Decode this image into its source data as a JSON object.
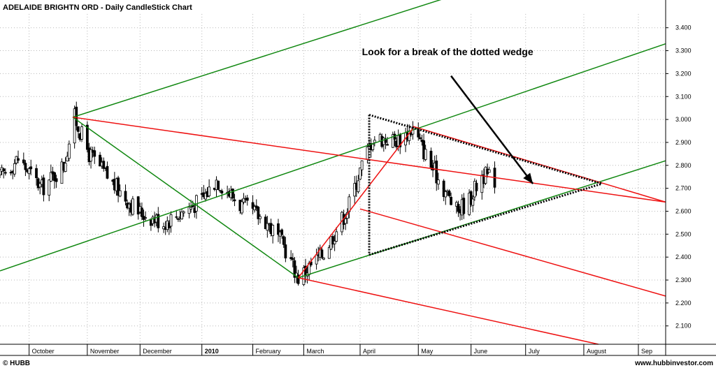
{
  "chart_data": {
    "type": "candlestick",
    "title": "ADELAIDE BRIGHTN ORD - Daily CandleStick Chart",
    "xlabel": "",
    "ylabel": "",
    "ylim": [
      2.02,
      3.46
    ],
    "y_ticks": [
      "3.400",
      "3.300",
      "3.200",
      "3.100",
      "3.000",
      "2.900",
      "2.800",
      "2.700",
      "2.600",
      "2.500",
      "2.400",
      "2.300",
      "2.200",
      "2.100"
    ],
    "y_tick_values": [
      3.4,
      3.3,
      3.2,
      3.1,
      3.0,
      2.9,
      2.8,
      2.7,
      2.6,
      2.5,
      2.4,
      2.3,
      2.2,
      2.1
    ],
    "x_range": [
      "2009-09-15",
      "2010-09-16"
    ],
    "x_ticks": [
      {
        "label": "October",
        "date": "2009-10-01"
      },
      {
        "label": "November",
        "date": "2009-11-02"
      },
      {
        "label": "December",
        "date": "2009-12-01"
      },
      {
        "label": "2010",
        "date": "2010-01-04",
        "bold": true
      },
      {
        "label": "February",
        "date": "2010-02-01"
      },
      {
        "label": "March",
        "date": "2010-03-01"
      },
      {
        "label": "April",
        "date": "2010-04-01"
      },
      {
        "label": "May",
        "date": "2010-05-03"
      },
      {
        "label": "June",
        "date": "2010-06-01"
      },
      {
        "label": "July",
        "date": "2010-07-01"
      },
      {
        "label": "August",
        "date": "2010-08-02"
      },
      {
        "label": "Sep",
        "date": "2010-09-01"
      }
    ],
    "price_path": [
      {
        "date": "2009-09-15",
        "close": 2.75
      },
      {
        "date": "2009-09-25",
        "close": 2.83
      },
      {
        "date": "2009-10-08",
        "close": 2.7
      },
      {
        "date": "2009-10-20",
        "close": 2.8
      },
      {
        "date": "2009-10-26",
        "close": 3.01
      },
      {
        "date": "2009-11-03",
        "close": 2.85
      },
      {
        "date": "2009-11-16",
        "close": 2.72
      },
      {
        "date": "2009-11-30",
        "close": 2.6
      },
      {
        "date": "2009-12-14",
        "close": 2.55
      },
      {
        "date": "2010-01-04",
        "close": 2.65
      },
      {
        "date": "2010-01-12",
        "close": 2.74
      },
      {
        "date": "2010-01-25",
        "close": 2.63
      },
      {
        "date": "2010-02-08",
        "close": 2.56
      },
      {
        "date": "2010-02-18",
        "close": 2.45
      },
      {
        "date": "2010-02-26",
        "close": 2.31
      },
      {
        "date": "2010-03-12",
        "close": 2.42
      },
      {
        "date": "2010-03-25",
        "close": 2.61
      },
      {
        "date": "2010-04-01",
        "close": 2.78
      },
      {
        "date": "2010-04-08",
        "close": 2.92
      },
      {
        "date": "2010-04-22",
        "close": 2.91
      },
      {
        "date": "2010-04-30",
        "close": 2.96
      },
      {
        "date": "2010-05-10",
        "close": 2.8
      },
      {
        "date": "2010-05-24",
        "close": 2.6
      },
      {
        "date": "2010-05-31",
        "close": 2.65
      },
      {
        "date": "2010-06-07",
        "close": 2.76
      },
      {
        "date": "2010-06-14",
        "close": 2.74
      }
    ],
    "trend_lines": [
      {
        "color": "green",
        "style": "solid",
        "from": [
          "2009-09-15",
          2.34
        ],
        "to": [
          "2010-09-16",
          3.33
        ]
      },
      {
        "color": "green",
        "style": "solid",
        "from": [
          "2009-10-25",
          3.01
        ],
        "to": [
          "2010-06-15",
          3.6
        ]
      },
      {
        "color": "green",
        "style": "solid",
        "from": [
          "2009-10-25",
          3.01
        ],
        "to": [
          "2010-02-26",
          2.31
        ]
      },
      {
        "color": "green",
        "style": "solid",
        "from": [
          "2010-02-26",
          2.31
        ],
        "to": [
          "2010-09-16",
          2.82
        ]
      },
      {
        "color": "red",
        "style": "solid",
        "from": [
          "2009-10-25",
          3.01
        ],
        "to": [
          "2010-09-16",
          2.64
        ]
      },
      {
        "color": "red",
        "style": "solid",
        "from": [
          "2010-04-30",
          2.97
        ],
        "to": [
          "2010-09-16",
          2.64
        ]
      },
      {
        "color": "red",
        "style": "solid",
        "from": [
          "2010-02-26",
          2.31
        ],
        "to": [
          "2010-04-30",
          2.96
        ]
      },
      {
        "color": "red",
        "style": "solid",
        "from": [
          "2010-02-26",
          2.31
        ],
        "to": [
          "2010-08-10",
          2.02
        ]
      },
      {
        "color": "red",
        "style": "solid",
        "from": [
          "2010-04-01",
          2.61
        ],
        "to": [
          "2010-09-16",
          2.23
        ]
      }
    ],
    "wedge": {
      "color": "black",
      "style": "dotted",
      "lines": [
        {
          "from": [
            "2010-04-06",
            3.02
          ],
          "to": [
            "2010-08-12",
            2.72
          ]
        },
        {
          "from": [
            "2010-04-06",
            2.41
          ],
          "to": [
            "2010-08-12",
            2.72
          ]
        },
        {
          "from": [
            "2010-04-06",
            3.02
          ],
          "to": [
            "2010-04-06",
            2.41
          ]
        }
      ]
    },
    "annotations": [
      {
        "text": "Look for a break of the dotted wedge",
        "at": [
          "2010-04-02",
          3.28
        ]
      }
    ],
    "arrows": [
      {
        "from": [
          "2010-05-21",
          3.19
        ],
        "to": [
          "2010-07-05",
          2.72
        ]
      }
    ],
    "colors": {
      "green": "#118811",
      "red": "#ee1111",
      "grid": "#b8b8b8",
      "candle": "#000000"
    },
    "grid": true,
    "y_axis_side": "right"
  },
  "footer": {
    "left": "© HUBB",
    "right": "www.hubbinvestor.com"
  }
}
